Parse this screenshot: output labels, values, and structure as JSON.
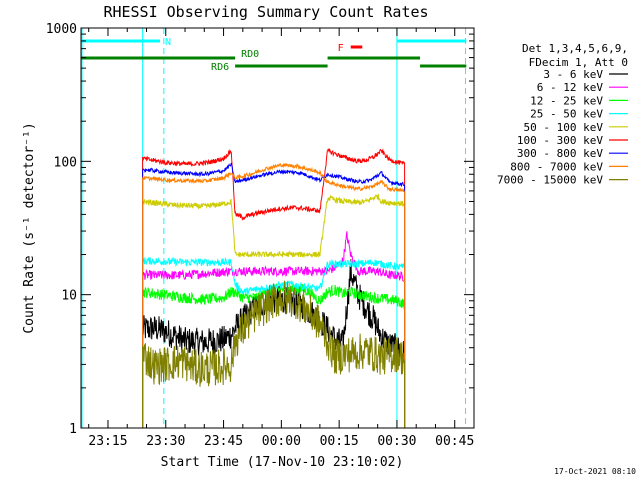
{
  "chart_data": {
    "type": "line",
    "title": "RHESSI Observing Summary Count Rates",
    "xlabel": "Start Time (17-Nov-10 23:10:02)",
    "ylabel": "Count Rate (s⁻¹ detector⁻¹)",
    "y_scale": "log",
    "ylim": [
      1,
      1000
    ],
    "y_ticks": [
      {
        "value": 1,
        "label": "1"
      },
      {
        "value": 10,
        "label": "10"
      },
      {
        "value": 100,
        "label": "100"
      },
      {
        "value": 1000,
        "label": "1000"
      }
    ],
    "x_unit": "minutes after 23:10 on 17-Nov-10",
    "xlim": [
      -2,
      100
    ],
    "x_ticks": [
      {
        "t": 5,
        "label": "23:15"
      },
      {
        "t": 20,
        "label": "23:30"
      },
      {
        "t": 35,
        "label": "23:45"
      },
      {
        "t": 50,
        "label": "00:00"
      },
      {
        "t": 65,
        "label": "00:15"
      },
      {
        "t": 80,
        "label": "00:30"
      },
      {
        "t": 95,
        "label": "00:45"
      }
    ],
    "grid": false,
    "legend": {
      "placement": "right",
      "header": [
        "Det 1,3,4,5,6,9,",
        "FDecim 1, Att 0"
      ]
    },
    "series": [
      {
        "name": "3 - 6 keV",
        "color": "#000000",
        "noise": 0.3,
        "points": [
          [
            14,
            5.5
          ],
          [
            17,
            5.6
          ],
          [
            20,
            5.3
          ],
          [
            25,
            4.5
          ],
          [
            30,
            4.4
          ],
          [
            35,
            4.6
          ],
          [
            37,
            5.0
          ],
          [
            38,
            5.6
          ],
          [
            40,
            6.5
          ],
          [
            43,
            8.0
          ],
          [
            46,
            8.8
          ],
          [
            49,
            9.3
          ],
          [
            52,
            9.0
          ],
          [
            55,
            8.5
          ],
          [
            58,
            7.2
          ],
          [
            60,
            6.5
          ],
          [
            62,
            5.5
          ],
          [
            64,
            4.6
          ],
          [
            66,
            4.3
          ],
          [
            68,
            15
          ],
          [
            70,
            10
          ],
          [
            72,
            8.0
          ],
          [
            74,
            6.5
          ],
          [
            76,
            4.8
          ],
          [
            78,
            4.2
          ],
          [
            80,
            4.0
          ],
          [
            82,
            3.6
          ]
        ]
      },
      {
        "name": "6 - 12 keV",
        "color": "#ff00ff",
        "noise": 0.1,
        "points": [
          [
            14,
            14
          ],
          [
            25,
            14
          ],
          [
            37,
            15
          ],
          [
            38,
            15
          ],
          [
            45,
            15
          ],
          [
            60,
            15
          ],
          [
            62,
            15
          ],
          [
            64,
            16
          ],
          [
            66,
            18
          ],
          [
            67,
            28
          ],
          [
            68,
            20
          ],
          [
            70,
            15
          ],
          [
            75,
            15
          ],
          [
            78,
            14
          ],
          [
            80,
            14
          ],
          [
            82,
            13.5
          ]
        ]
      },
      {
        "name": "12 - 25 keV",
        "color": "#00ff00",
        "noise": 0.12,
        "points": [
          [
            14,
            10.5
          ],
          [
            25,
            9.5
          ],
          [
            30,
            9.2
          ],
          [
            35,
            9.5
          ],
          [
            37,
            10.5
          ],
          [
            38,
            10.5
          ],
          [
            40,
            9.5
          ],
          [
            44,
            9.5
          ],
          [
            46,
            10.5
          ],
          [
            50,
            11
          ],
          [
            56,
            11
          ],
          [
            58,
            10
          ],
          [
            60,
            9.0
          ],
          [
            62,
            10.5
          ],
          [
            64,
            10.8
          ],
          [
            66,
            10.2
          ],
          [
            68,
            10.5
          ],
          [
            70,
            10
          ],
          [
            74,
            9.5
          ],
          [
            80,
            9.0
          ],
          [
            82,
            8.5
          ]
        ]
      },
      {
        "name": "25 - 50 keV",
        "color": "#00ffff",
        "noise": 0.08,
        "points": [
          [
            14,
            18
          ],
          [
            25,
            17.5
          ],
          [
            37,
            17.5
          ],
          [
            38,
            12
          ],
          [
            40,
            10.5
          ],
          [
            44,
            11
          ],
          [
            48,
            11.5
          ],
          [
            52,
            12
          ],
          [
            56,
            11.5
          ],
          [
            60,
            11
          ],
          [
            62,
            17
          ],
          [
            66,
            17
          ],
          [
            70,
            17
          ],
          [
            74,
            17.5
          ],
          [
            78,
            16.5
          ],
          [
            82,
            16
          ]
        ]
      },
      {
        "name": "50 - 100 keV",
        "color": "#cccc00",
        "noise": 0.06,
        "points": [
          [
            14,
            50
          ],
          [
            22,
            47
          ],
          [
            30,
            46
          ],
          [
            35,
            48
          ],
          [
            37,
            50
          ],
          [
            38,
            20
          ],
          [
            42,
            20
          ],
          [
            46,
            20
          ],
          [
            52,
            20
          ],
          [
            57,
            20
          ],
          [
            59,
            20
          ],
          [
            60,
            20
          ],
          [
            62,
            53
          ],
          [
            66,
            50
          ],
          [
            70,
            49
          ],
          [
            72,
            50
          ],
          [
            75,
            55
          ],
          [
            76,
            50
          ],
          [
            78,
            49
          ],
          [
            82,
            48
          ]
        ]
      },
      {
        "name": "100 - 300 keV",
        "color": "#ff0000",
        "noise": 0.05,
        "points": [
          [
            14,
            105
          ],
          [
            20,
            98
          ],
          [
            26,
            95
          ],
          [
            31,
            98
          ],
          [
            35,
            105
          ],
          [
            37,
            120
          ],
          [
            38,
            40
          ],
          [
            40,
            38
          ],
          [
            44,
            41
          ],
          [
            49,
            44
          ],
          [
            54,
            45
          ],
          [
            59,
            43
          ],
          [
            60,
            42
          ],
          [
            62,
            120
          ],
          [
            66,
            108
          ],
          [
            70,
            100
          ],
          [
            72,
            102
          ],
          [
            74,
            108
          ],
          [
            76,
            120
          ],
          [
            78,
            103
          ],
          [
            82,
            95
          ]
        ]
      },
      {
        "name": "300 - 800 keV",
        "color": "#0000ff",
        "noise": 0.04,
        "points": [
          [
            14,
            87
          ],
          [
            22,
            82
          ],
          [
            30,
            80
          ],
          [
            35,
            85
          ],
          [
            37,
            95
          ],
          [
            38,
            70
          ],
          [
            42,
            75
          ],
          [
            46,
            80
          ],
          [
            50,
            84
          ],
          [
            55,
            82
          ],
          [
            59,
            74
          ],
          [
            60,
            72
          ],
          [
            62,
            80
          ],
          [
            66,
            75
          ],
          [
            70,
            70
          ],
          [
            73,
            72
          ],
          [
            76,
            82
          ],
          [
            78,
            70
          ],
          [
            82,
            67
          ]
        ]
      },
      {
        "name": "800 - 7000 keV",
        "color": "#ff8000",
        "noise": 0.04,
        "points": [
          [
            14,
            75
          ],
          [
            22,
            72
          ],
          [
            30,
            71
          ],
          [
            35,
            75
          ],
          [
            37,
            82
          ],
          [
            38,
            75
          ],
          [
            42,
            80
          ],
          [
            46,
            88
          ],
          [
            50,
            94
          ],
          [
            54,
            92
          ],
          [
            59,
            84
          ],
          [
            60,
            82
          ],
          [
            62,
            70
          ],
          [
            66,
            65
          ],
          [
            70,
            62
          ],
          [
            73,
            64
          ],
          [
            76,
            70
          ],
          [
            78,
            62
          ],
          [
            82,
            60
          ]
        ]
      },
      {
        "name": "7000 - 15000 keV",
        "color": "#808000",
        "noise": 0.4,
        "points": [
          [
            14,
            3.6
          ],
          [
            17,
            2.9
          ],
          [
            20,
            3.0
          ],
          [
            24,
            3.2
          ],
          [
            28,
            2.8
          ],
          [
            32,
            2.8
          ],
          [
            35,
            2.9
          ],
          [
            37,
            3.0
          ],
          [
            38,
            4.5
          ],
          [
            41,
            6.0
          ],
          [
            44,
            7.5
          ],
          [
            48,
            9.0
          ],
          [
            51,
            9.5
          ],
          [
            54,
            9.0
          ],
          [
            57,
            7.5
          ],
          [
            60,
            6.0
          ],
          [
            62,
            4.5
          ],
          [
            64,
            3.4
          ],
          [
            68,
            3.6
          ],
          [
            72,
            3.8
          ],
          [
            76,
            3.4
          ],
          [
            80,
            3.6
          ],
          [
            82,
            3.3
          ]
        ]
      }
    ],
    "attenuator_boxes": [
      {
        "t_start": -2,
        "t_end": 14
      },
      {
        "t_start": 80,
        "t_end": 100
      }
    ],
    "flag_bars": [
      {
        "label": "N",
        "color": "#00ffff",
        "level": 1,
        "segments": [
          [
            -2,
            18.5
          ],
          [
            80,
            98
          ]
        ]
      },
      {
        "label": "F",
        "color": "#ff0000",
        "level": 2,
        "segments": [
          [
            68,
            71
          ]
        ]
      },
      {
        "label": "RD0",
        "color": "#008000",
        "level": 3,
        "segments": [
          [
            -2,
            38
          ],
          [
            62,
            86
          ]
        ]
      },
      {
        "label": "RD6",
        "color": "#008000",
        "level": 4,
        "segments": [
          [
            38,
            62
          ],
          [
            86,
            98
          ]
        ]
      }
    ],
    "eclipse_markers": [
      {
        "t": 19.5,
        "color": "#00ffff"
      },
      {
        "t": 97.8,
        "color": "#00ffff"
      }
    ]
  },
  "footer": {
    "timestamp": "17-Oct-2021 08:10"
  }
}
